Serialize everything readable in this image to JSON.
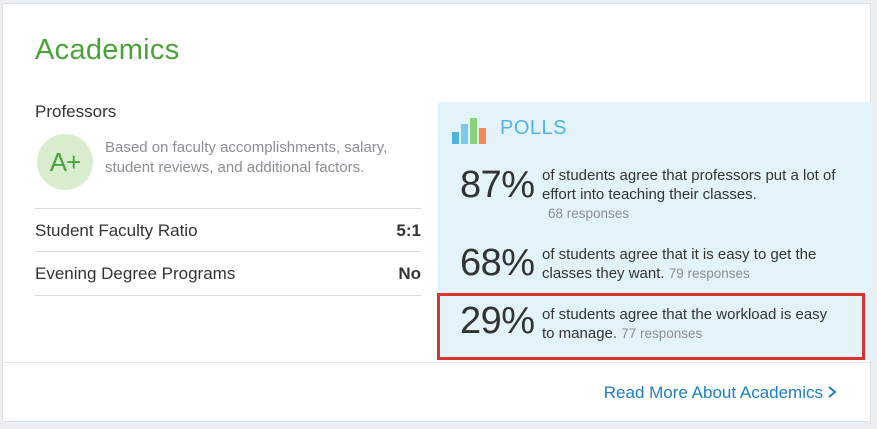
{
  "section": {
    "title": "Academics"
  },
  "professors": {
    "label": "Professors",
    "grade": "A+",
    "description": "Based on faculty accomplishments, salary, student reviews, and additional factors."
  },
  "facts": [
    {
      "label": "Student Faculty Ratio",
      "value": "5:1"
    },
    {
      "label": "Evening Degree Programs",
      "value": "No"
    }
  ],
  "polls": {
    "title": "POLLS",
    "icon": "bar-chart-icon",
    "items": [
      {
        "percent": "87%",
        "text": "of students agree that professors put a lot of effort into teaching their classes.",
        "responses": "68 responses"
      },
      {
        "percent": "68%",
        "text": "of students agree that it is easy to get the classes they want.",
        "responses": "79 responses"
      },
      {
        "percent": "29%",
        "text": "of students agree that the workload is easy to manage.",
        "responses": "77 responses"
      }
    ]
  },
  "footer": {
    "link_label": "Read More About Academics"
  },
  "colors": {
    "title_green": "#4aa33a",
    "polls_bg": "#e2f3fa",
    "polls_title": "#4fb4e5",
    "link_blue": "#1f7dc1",
    "highlight_red": "#e03131"
  }
}
